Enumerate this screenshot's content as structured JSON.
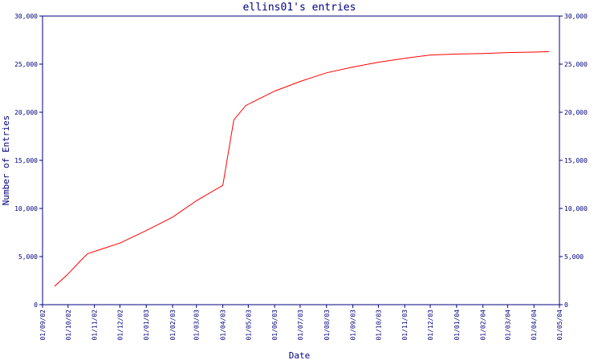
{
  "chart_data": {
    "type": "line",
    "title": "ellins01's entries",
    "xlabel": "Date",
    "ylabel": "Number of Entries",
    "ylim": [
      0,
      30000
    ],
    "y_ticks": [
      0,
      5000,
      10000,
      15000,
      20000,
      25000,
      30000
    ],
    "y_tick_labels": [
      "0",
      "5,000",
      "10,000",
      "15,000",
      "20,000",
      "25,000",
      "30,000"
    ],
    "x_range": [
      "2002-09-01",
      "2004-05-01"
    ],
    "x_tick_labels": [
      "01/09/02",
      "01/10/02",
      "01/11/02",
      "01/12/02",
      "01/01/03",
      "01/02/03",
      "01/03/03",
      "01/04/03",
      "01/05/03",
      "01/06/03",
      "01/07/03",
      "01/08/03",
      "01/09/03",
      "01/10/03",
      "01/11/03",
      "01/12/03",
      "01/01/04",
      "01/02/04",
      "01/03/04",
      "01/04/04",
      "01/05/04"
    ],
    "x_tick_dates": [
      "2002-09-01",
      "2002-10-01",
      "2002-11-01",
      "2002-12-01",
      "2003-01-01",
      "2003-02-01",
      "2003-03-01",
      "2003-04-01",
      "2003-05-01",
      "2003-06-01",
      "2003-07-01",
      "2003-08-01",
      "2003-09-01",
      "2003-10-01",
      "2003-11-01",
      "2003-12-01",
      "2004-01-01",
      "2004-02-01",
      "2004-03-01",
      "2004-04-01",
      "2004-05-01"
    ],
    "grid": false,
    "right_axis": true,
    "series": [
      {
        "color": "#ff0000",
        "points": [
          {
            "x": "2002-09-15",
            "y": 1900
          },
          {
            "x": "2002-09-30",
            "y": 3100
          },
          {
            "x": "2002-10-15",
            "y": 4500
          },
          {
            "x": "2002-10-24",
            "y": 5300
          },
          {
            "x": "2002-12-01",
            "y": 6400
          },
          {
            "x": "2003-01-01",
            "y": 7700
          },
          {
            "x": "2003-02-01",
            "y": 9100
          },
          {
            "x": "2003-03-01",
            "y": 10800
          },
          {
            "x": "2003-04-01",
            "y": 12400
          },
          {
            "x": "2003-04-14",
            "y": 19200
          },
          {
            "x": "2003-04-28",
            "y": 20700
          },
          {
            "x": "2003-06-01",
            "y": 22200
          },
          {
            "x": "2003-07-01",
            "y": 23200
          },
          {
            "x": "2003-08-01",
            "y": 24100
          },
          {
            "x": "2003-09-01",
            "y": 24700
          },
          {
            "x": "2003-10-01",
            "y": 25200
          },
          {
            "x": "2003-11-01",
            "y": 25600
          },
          {
            "x": "2003-12-01",
            "y": 25950
          },
          {
            "x": "2004-01-01",
            "y": 26050
          },
          {
            "x": "2004-02-01",
            "y": 26100
          },
          {
            "x": "2004-03-01",
            "y": 26200
          },
          {
            "x": "2004-04-01",
            "y": 26250
          },
          {
            "x": "2004-04-19",
            "y": 26300
          }
        ]
      }
    ]
  }
}
